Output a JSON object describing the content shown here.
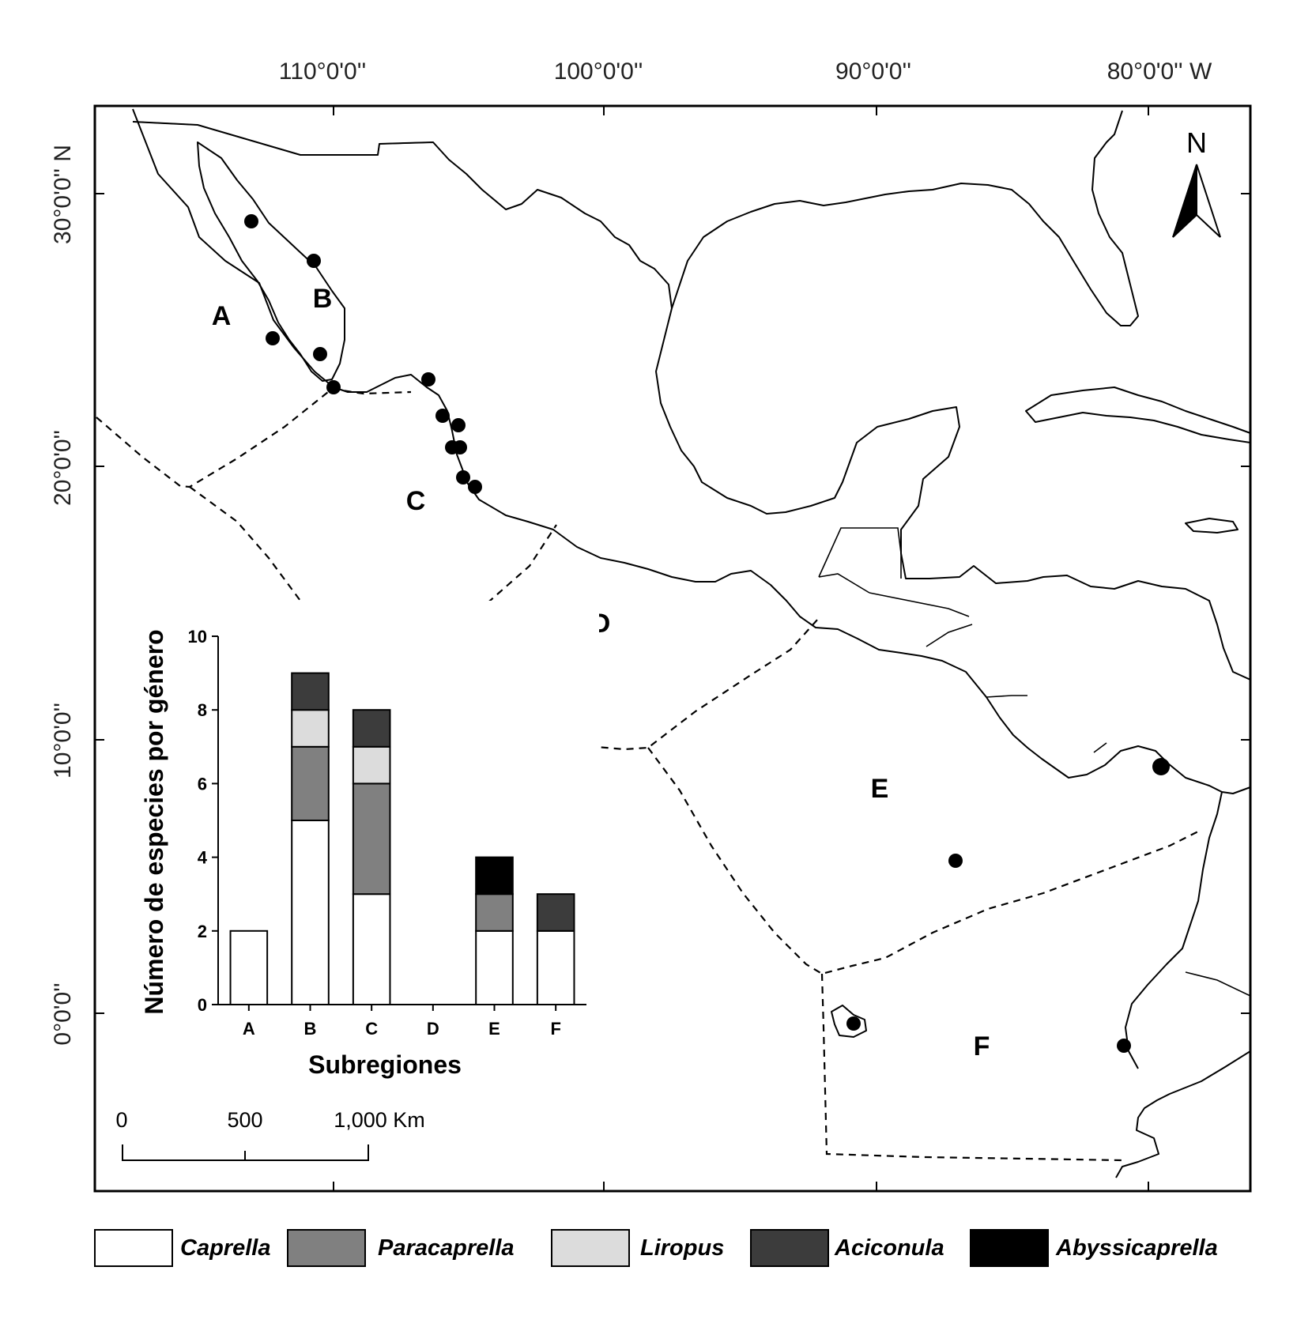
{
  "map": {
    "longitude_labels": [
      "110°0'0''",
      "100°0'0''",
      "90°0'0''",
      "80°0'0'' W"
    ],
    "latitude_labels": [
      "30°0'0'' N",
      "20°0'0''",
      "10°0'0''",
      "0°0'0''"
    ],
    "north_label": "N",
    "subregions": [
      "A",
      "B",
      "C",
      "D",
      "E",
      "F"
    ],
    "scale_bar": {
      "labels": [
        "0",
        "500",
        "1,000 Km"
      ]
    }
  },
  "chart_data": {
    "type": "bar",
    "stacked": true,
    "xlabel": "Subregiones",
    "ylabel": "Número de especies por género",
    "categories": [
      "A",
      "B",
      "C",
      "D",
      "E",
      "F"
    ],
    "ylim": [
      0,
      10
    ],
    "yticks": [
      "0",
      "2",
      "4",
      "6",
      "8",
      "10"
    ],
    "grid": false,
    "series": [
      {
        "name": "Caprella",
        "color": "#ffffff",
        "values": [
          2,
          5,
          3,
          0,
          2,
          2
        ]
      },
      {
        "name": "Paracaprella",
        "color": "#808080",
        "values": [
          0,
          2,
          3,
          0,
          1,
          0
        ]
      },
      {
        "name": "Liropus",
        "color": "#dcdcdc",
        "values": [
          0,
          1,
          1,
          0,
          0,
          0
        ]
      },
      {
        "name": "Aciconula",
        "color": "#3c3c3c",
        "values": [
          0,
          1,
          1,
          0,
          0,
          1
        ]
      },
      {
        "name": "Abyssicaprella",
        "color": "#000000",
        "values": [
          0,
          0,
          0,
          0,
          1,
          0
        ]
      }
    ]
  },
  "legend": {
    "items": [
      {
        "label": "Caprella",
        "color": "#ffffff"
      },
      {
        "label": "Paracaprella",
        "color": "#808080"
      },
      {
        "label": "Liropus",
        "color": "#dcdcdc"
      },
      {
        "label": "Aciconula",
        "color": "#3c3c3c"
      },
      {
        "label": "Abyssicaprella",
        "color": "#000000"
      }
    ]
  }
}
